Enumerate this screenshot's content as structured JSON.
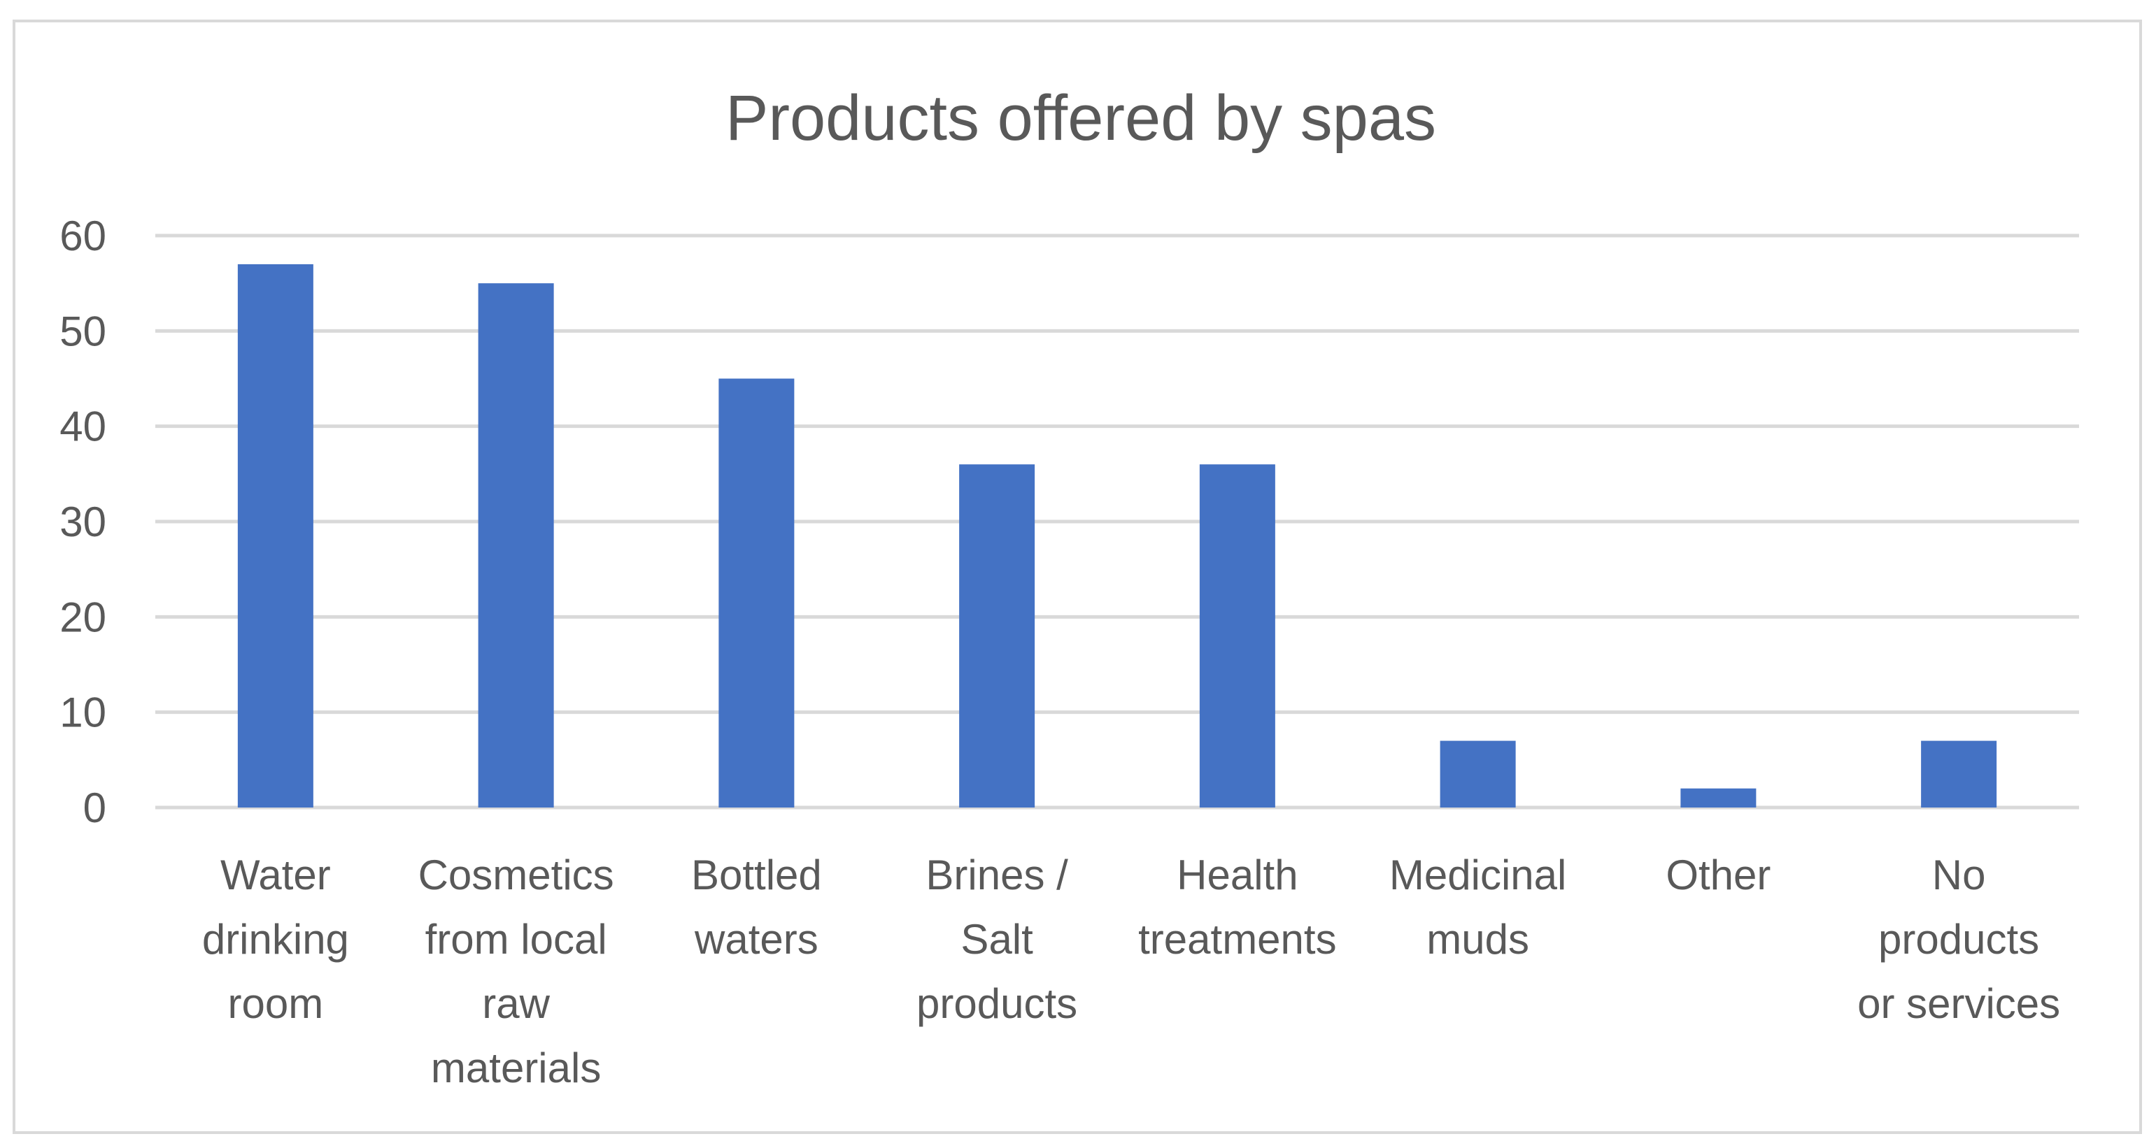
{
  "chart_data": {
    "type": "bar",
    "title": "Products offered by spas",
    "xlabel": "",
    "ylabel": "",
    "categories": [
      "Water drinking room",
      "Cosmetics from local raw materials",
      "Bottled waters",
      "Brines / Salt products",
      "Health treatments",
      "Medicinal muds",
      "Other",
      "No products or services"
    ],
    "category_lines": [
      [
        "Water",
        "drinking",
        "room"
      ],
      [
        "Cosmetics",
        "from local",
        "raw",
        "materials"
      ],
      [
        "Bottled",
        "waters"
      ],
      [
        "Brines /",
        "Salt",
        "products"
      ],
      [
        "Health",
        "treatments"
      ],
      [
        "Medicinal",
        "muds"
      ],
      [
        "Other"
      ],
      [
        "No",
        "products",
        "or services"
      ]
    ],
    "values": [
      57,
      55,
      45,
      36,
      36,
      7,
      2,
      7
    ],
    "ylim": [
      0,
      60
    ],
    "yticks": [
      0,
      10,
      20,
      30,
      40,
      50,
      60
    ],
    "grid": true,
    "legend": "none",
    "colors": {
      "bar": "#4472C4",
      "grid": "#d9d9d9",
      "text": "#595959",
      "border": "#d9d9d9"
    }
  }
}
